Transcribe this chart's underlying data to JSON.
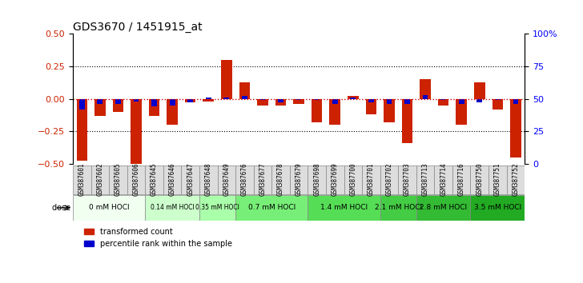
{
  "title": "GDS3670 / 1451915_at",
  "samples": [
    "GSM387601",
    "GSM387602",
    "GSM387605",
    "GSM387606",
    "GSM387645",
    "GSM387646",
    "GSM387647",
    "GSM387648",
    "GSM387649",
    "GSM387676",
    "GSM387677",
    "GSM387678",
    "GSM387679",
    "GSM387698",
    "GSM387699",
    "GSM387700",
    "GSM387701",
    "GSM387702",
    "GSM387703",
    "GSM387713",
    "GSM387714",
    "GSM387716",
    "GSM387750",
    "GSM387751",
    "GSM387752"
  ],
  "transformed_count": [
    -0.48,
    -0.13,
    -0.1,
    -0.5,
    -0.13,
    -0.2,
    -0.03,
    -0.02,
    0.3,
    0.13,
    -0.05,
    -0.05,
    -0.04,
    -0.18,
    -0.2,
    0.02,
    -0.12,
    -0.18,
    -0.34,
    0.15,
    -0.05,
    -0.2,
    0.13,
    -0.08,
    -0.45
  ],
  "percentile_rank": [
    -0.08,
    -0.04,
    -0.04,
    -0.02,
    -0.06,
    -0.05,
    -0.03,
    0.01,
    0.01,
    0.02,
    -0.01,
    -0.03,
    -0.01,
    -0.01,
    -0.04,
    0.01,
    -0.03,
    -0.04,
    -0.04,
    0.03,
    -0.01,
    -0.04,
    -0.03,
    -0.01,
    -0.04
  ],
  "dose_groups": [
    {
      "label": "0 mM HOCl",
      "start": 0,
      "end": 4,
      "color": "#ffffff"
    },
    {
      "label": "0.14 mM HOCl",
      "start": 4,
      "end": 7,
      "color": "#ccffcc"
    },
    {
      "label": "0.35 mM HOCl",
      "start": 7,
      "end": 9,
      "color": "#99ff99"
    },
    {
      "label": "0.7 mM HOCl",
      "start": 9,
      "end": 13,
      "color": "#66ff66"
    },
    {
      "label": "1.4 mM HOCl",
      "start": 13,
      "end": 17,
      "color": "#44ee44"
    },
    {
      "label": "2.1 mM HOCl",
      "start": 17,
      "end": 19,
      "color": "#33dd33"
    },
    {
      "label": "2.8 mM HOCl",
      "start": 19,
      "end": 22,
      "color": "#22cc22"
    },
    {
      "label": "3.5 mM HOCl",
      "start": 22,
      "end": 25,
      "color": "#11bb11"
    }
  ],
  "ylim": [
    -0.5,
    0.5
  ],
  "yticks": [
    -0.5,
    -0.25,
    0,
    0.25,
    0.5
  ],
  "y2ticks": [
    0,
    25,
    50,
    75,
    100
  ],
  "bar_color": "#cc2200",
  "percentile_color": "#0000cc",
  "zero_line_color": "#cc0000",
  "grid_color": "#000000",
  "bg_color": "#ffffff"
}
